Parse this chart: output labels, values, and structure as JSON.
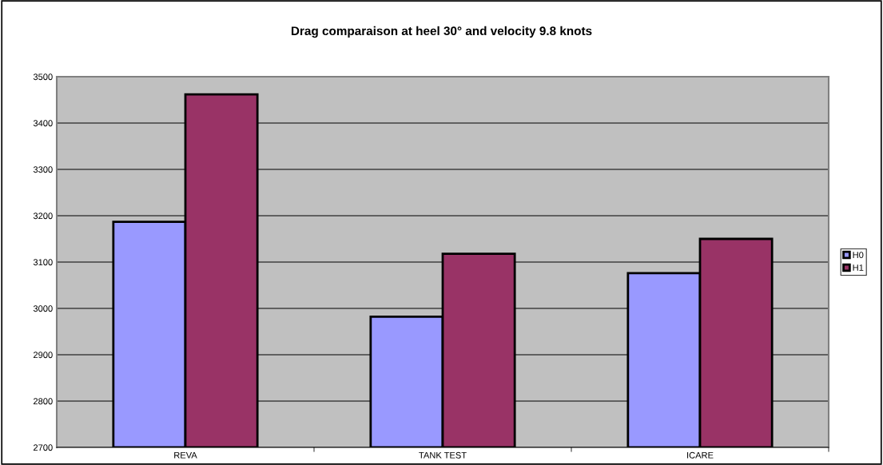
{
  "chart_data": {
    "type": "bar",
    "title": "Drag comparaison at heel 30° and velocity 9.8 knots",
    "categories": [
      "REVA",
      "TANK TEST",
      "ICARE"
    ],
    "series": [
      {
        "name": "H0",
        "color": "#9999ff",
        "values": [
          3187,
          2982,
          3076
        ]
      },
      {
        "name": "H1",
        "color": "#993366",
        "values": [
          3462,
          3118,
          3150
        ]
      }
    ],
    "ylim": [
      2700,
      3500
    ],
    "yticks": [
      2700,
      2800,
      2900,
      3000,
      3100,
      3200,
      3300,
      3400,
      3500
    ],
    "grid": "y",
    "legend": "right"
  }
}
